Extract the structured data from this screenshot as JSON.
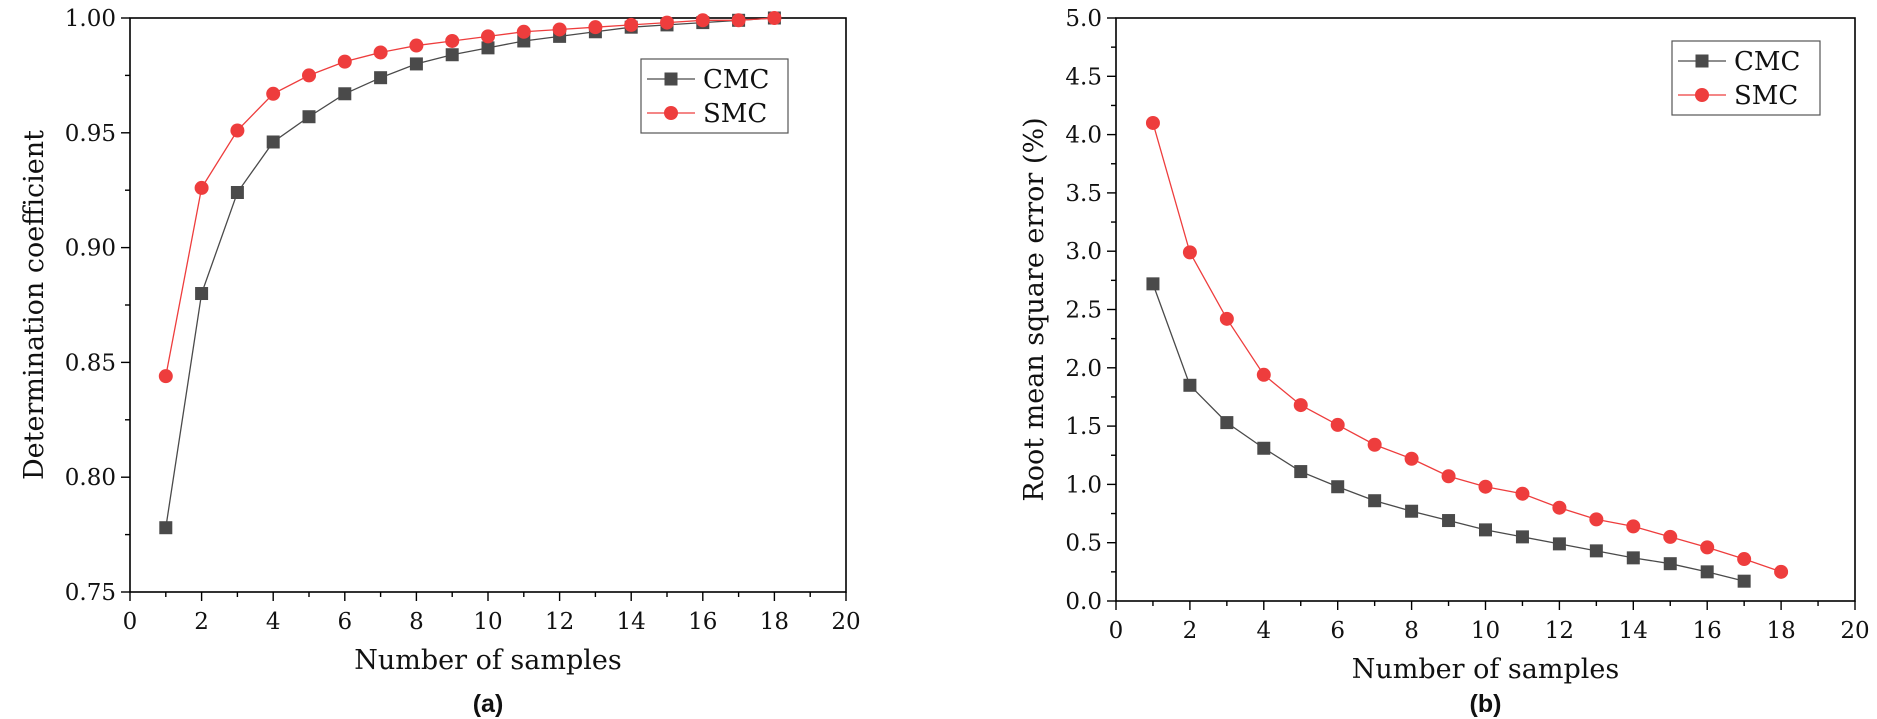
{
  "colors": {
    "cmc": "#4a4a4a",
    "smc": "#ee3d3d"
  },
  "chart_data": [
    {
      "type": "line",
      "panel_label": "(a)",
      "xlabel": "Number of samples",
      "ylabel": "Determination coefficient",
      "xlim": [
        0,
        20
      ],
      "ylim": [
        0.75,
        1.0
      ],
      "xticks": [
        "0",
        "2",
        "4",
        "6",
        "8",
        "10",
        "12",
        "14",
        "16",
        "18",
        "20"
      ],
      "yticks": [
        "0.75",
        "0.80",
        "0.85",
        "0.90",
        "0.95",
        "1.00"
      ],
      "legend_position": "top-right",
      "series": [
        {
          "name": "CMC",
          "marker": "square",
          "color": "#4a4a4a",
          "x": [
            1,
            2,
            3,
            4,
            5,
            6,
            7,
            8,
            9,
            10,
            11,
            12,
            13,
            14,
            15,
            16,
            17,
            18
          ],
          "y": [
            0.778,
            0.88,
            0.924,
            0.946,
            0.957,
            0.967,
            0.974,
            0.98,
            0.984,
            0.987,
            0.99,
            0.992,
            0.994,
            0.996,
            0.997,
            0.998,
            0.999,
            1.0
          ]
        },
        {
          "name": "SMC",
          "marker": "circle",
          "color": "#ee3d3d",
          "x": [
            1,
            2,
            3,
            4,
            5,
            6,
            7,
            8,
            9,
            10,
            11,
            12,
            13,
            14,
            15,
            16,
            17,
            18
          ],
          "y": [
            0.844,
            0.926,
            0.951,
            0.967,
            0.975,
            0.981,
            0.985,
            0.988,
            0.99,
            0.992,
            0.994,
            0.995,
            0.996,
            0.997,
            0.998,
            0.999,
            0.999,
            1.0
          ]
        }
      ]
    },
    {
      "type": "line",
      "panel_label": "(b)",
      "xlabel": "Number of samples",
      "ylabel": "Root mean square error (%)",
      "xlim": [
        0,
        20
      ],
      "ylim": [
        0.0,
        5.0
      ],
      "xticks": [
        "0",
        "2",
        "4",
        "6",
        "8",
        "10",
        "12",
        "14",
        "16",
        "18",
        "20"
      ],
      "yticks": [
        "0.0",
        "0.5",
        "1.0",
        "1.5",
        "2.0",
        "2.5",
        "3.0",
        "3.5",
        "4.0",
        "4.5",
        "5.0"
      ],
      "legend_position": "top-right",
      "series": [
        {
          "name": "CMC",
          "marker": "square",
          "color": "#4a4a4a",
          "x": [
            1,
            2,
            3,
            4,
            5,
            6,
            7,
            8,
            9,
            10,
            11,
            12,
            13,
            14,
            15,
            16,
            17
          ],
          "y": [
            2.72,
            1.85,
            1.53,
            1.31,
            1.11,
            0.98,
            0.86,
            0.77,
            0.69,
            0.61,
            0.55,
            0.49,
            0.43,
            0.37,
            0.32,
            0.25,
            0.17
          ]
        },
        {
          "name": "SMC",
          "marker": "circle",
          "color": "#ee3d3d",
          "x": [
            1,
            2,
            3,
            4,
            5,
            6,
            7,
            8,
            9,
            10,
            11,
            12,
            13,
            14,
            15,
            16,
            17,
            18
          ],
          "y": [
            4.1,
            2.99,
            2.42,
            1.94,
            1.68,
            1.51,
            1.34,
            1.22,
            1.07,
            0.98,
            0.92,
            0.8,
            0.7,
            0.64,
            0.55,
            0.46,
            0.36,
            0.25
          ]
        }
      ]
    }
  ]
}
